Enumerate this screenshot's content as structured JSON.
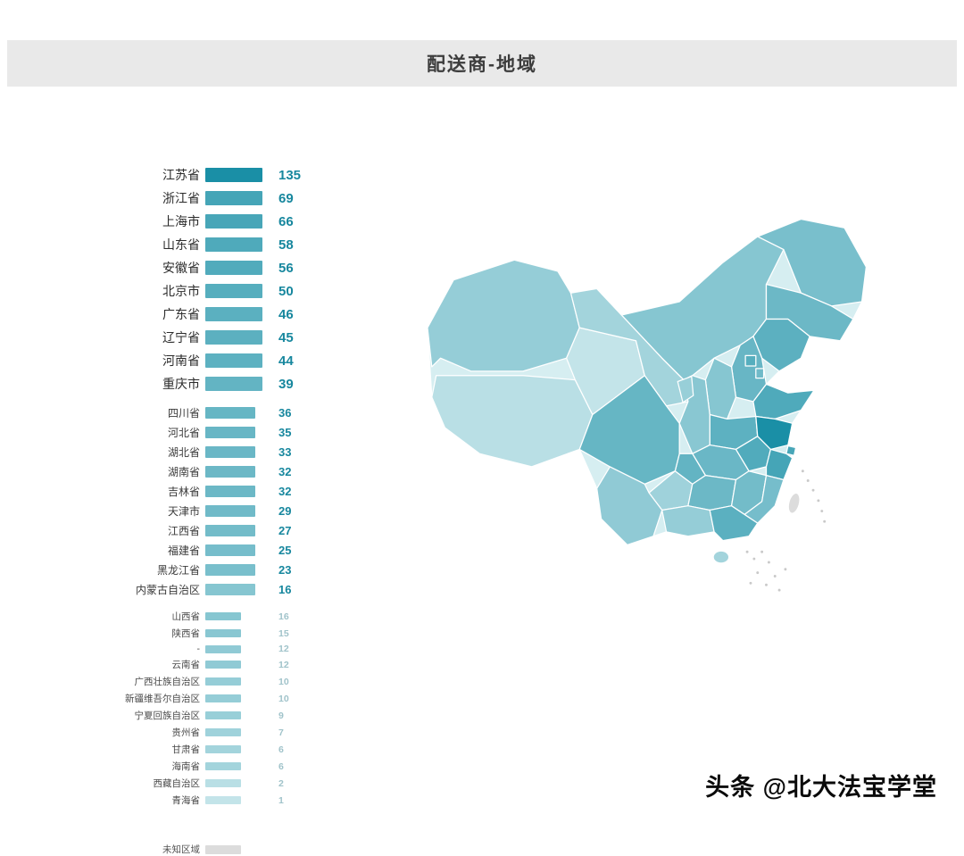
{
  "header": {
    "title": "配送商-地域"
  },
  "watermark": "头条 @北大法宝学堂",
  "colors": {
    "header_bg": "#e9e9e9",
    "title_color": "#3c3c3c",
    "scale_light": "#e8f7f8",
    "scale_dark": "#1a8fa6",
    "value_text": "#17879e",
    "value_text_light": "#a0c3ca",
    "unknown_swatch": "#dcdcdc",
    "map_base": "#d6eef1",
    "island_dots": "#c9c9c9"
  },
  "chart_data": {
    "type": "bar",
    "title": "配送商-地域",
    "legend_position": "left",
    "max_value": 135,
    "unknown_label": "未知区域",
    "groups": [
      {
        "tier": 1,
        "items": [
          {
            "label": "江苏省",
            "value": 135
          },
          {
            "label": "浙江省",
            "value": 69
          },
          {
            "label": "上海市",
            "value": 66
          },
          {
            "label": "山东省",
            "value": 58
          },
          {
            "label": "安徽省",
            "value": 56
          },
          {
            "label": "北京市",
            "value": 50
          },
          {
            "label": "广东省",
            "value": 46
          },
          {
            "label": "辽宁省",
            "value": 45
          },
          {
            "label": "河南省",
            "value": 44
          },
          {
            "label": "重庆市",
            "value": 39
          }
        ]
      },
      {
        "tier": 2,
        "items": [
          {
            "label": "四川省",
            "value": 36
          },
          {
            "label": "河北省",
            "value": 35
          },
          {
            "label": "湖北省",
            "value": 33
          },
          {
            "label": "湖南省",
            "value": 32
          },
          {
            "label": "吉林省",
            "value": 32
          },
          {
            "label": "天津市",
            "value": 29
          },
          {
            "label": "江西省",
            "value": 27
          },
          {
            "label": "福建省",
            "value": 25
          },
          {
            "label": "黑龙江省",
            "value": 23
          },
          {
            "label": "内蒙古自治区",
            "value": 16
          }
        ]
      },
      {
        "tier": 3,
        "items": [
          {
            "label": "山西省",
            "value": 16
          },
          {
            "label": "陕西省",
            "value": 15
          },
          {
            "label": "-",
            "value": 12
          },
          {
            "label": "云南省",
            "value": 12
          },
          {
            "label": "广西壮族自治区",
            "value": 10
          },
          {
            "label": "新疆维吾尔自治区",
            "value": 10
          },
          {
            "label": "宁夏回族自治区",
            "value": 9
          },
          {
            "label": "贵州省",
            "value": 7
          },
          {
            "label": "甘肃省",
            "value": 6
          },
          {
            "label": "海南省",
            "value": 6
          },
          {
            "label": "西藏自治区",
            "value": 2
          },
          {
            "label": "青海省",
            "value": 1
          }
        ]
      }
    ]
  }
}
